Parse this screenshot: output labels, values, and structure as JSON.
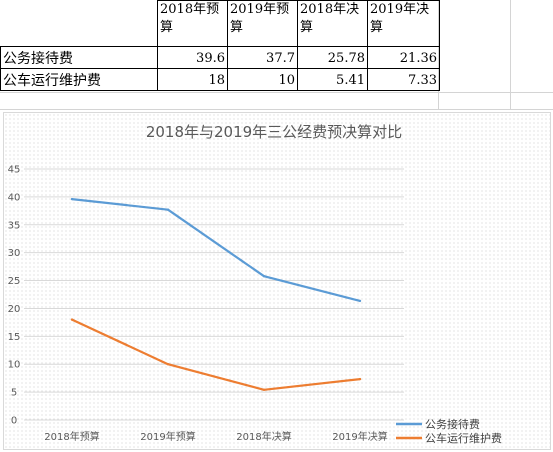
{
  "table": {
    "headers": [
      "",
      "2018年预算",
      "2019年预算",
      "2018年决算",
      "2019年决算"
    ],
    "rows": [
      {
        "label": "公务接待费",
        "cells": [
          "39.6",
          "37.7",
          "25.78",
          "21.36"
        ]
      },
      {
        "label": "公车运行维护费",
        "cells": [
          "18",
          "10",
          "5.41",
          "7.33"
        ]
      }
    ]
  },
  "chart_data": {
    "type": "line",
    "title": "2018年与2019年三公经费预决算对比",
    "categories": [
      "2018年预算",
      "2019年预算",
      "2018年决算",
      "2019年决算"
    ],
    "series": [
      {
        "name": "公务接待费",
        "values": [
          39.6,
          37.7,
          25.78,
          21.36
        ],
        "color": "#5b9bd5"
      },
      {
        "name": "公车运行维护费",
        "values": [
          18,
          10,
          5.41,
          7.33
        ],
        "color": "#ed7d31"
      }
    ],
    "yticks": [
      "0",
      "5",
      "10",
      "15",
      "20",
      "25",
      "30",
      "35",
      "40",
      "45"
    ],
    "ylim": [
      0,
      45
    ],
    "grid": true,
    "legend_position": "bottom-right"
  }
}
